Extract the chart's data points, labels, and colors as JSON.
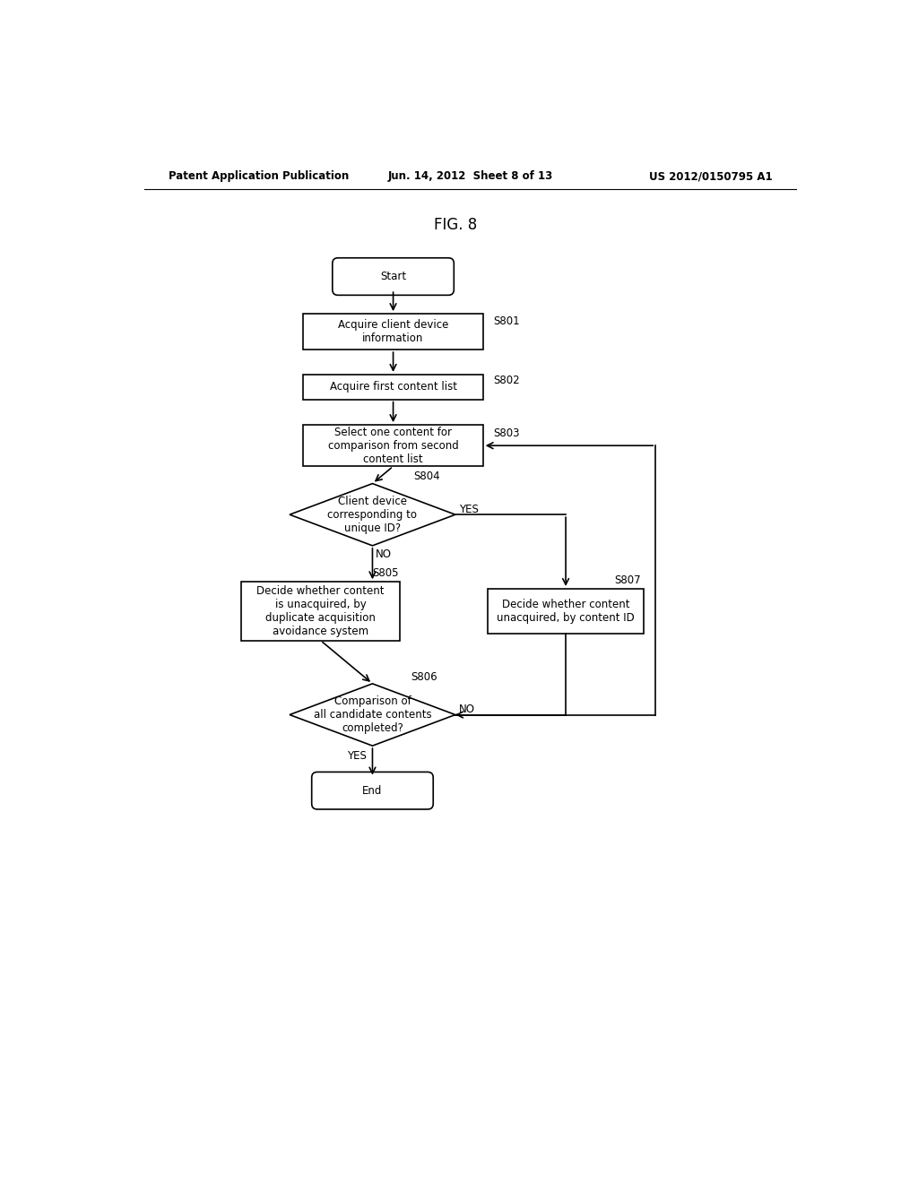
{
  "background_color": "#ffffff",
  "header_left": "Patent Application Publication",
  "header_center": "Jun. 14, 2012  Sheet 8 of 13",
  "header_right": "US 2012/0150795 A1",
  "figure_title": "FIG. 8",
  "font_size_nodes": 8.5,
  "font_size_header": 8.5,
  "font_size_title": 12,
  "font_size_label": 8.5
}
